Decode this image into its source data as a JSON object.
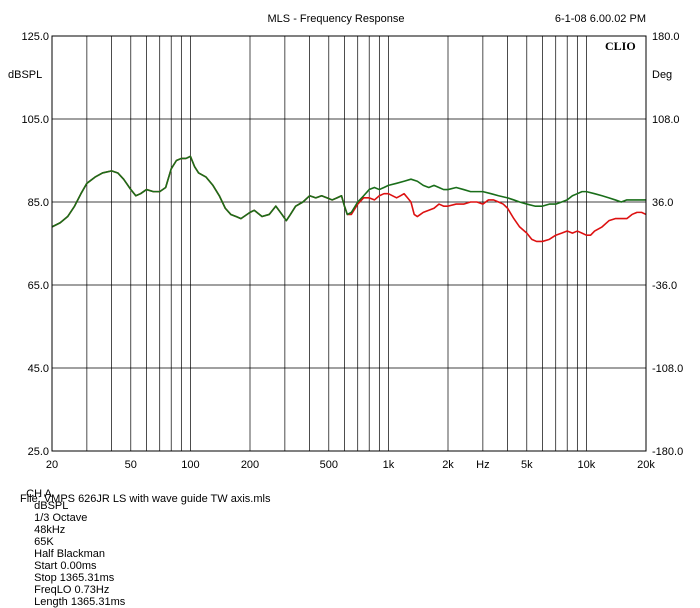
{
  "header": {
    "title": "MLS - Frequency Response",
    "timestamp": "6-1-08 6.00.02 PM",
    "logo": "CLIO"
  },
  "status_line": {
    "channel": "CH A",
    "unit": "dBSPL",
    "smoothing": "1/3 Octave",
    "sample_rate": "48kHz",
    "size": "65K",
    "window": "Half Blackman",
    "start": "Start 0.00ms",
    "stop": "Stop 1365.31ms",
    "freq_lo": "FreqLO 0.73Hz",
    "length": "Length 1365.31ms"
  },
  "file_line": "File: VMPS 626JR LS with wave guide TW axis.mls",
  "chart_data": {
    "type": "line",
    "title": "MLS - Frequency Response",
    "xlabel": "Hz",
    "ylabel": "dBSPL",
    "y2label": "Deg",
    "x_scale": "log",
    "xlim": [
      20,
      20000
    ],
    "ylim": [
      25,
      125
    ],
    "y2lim": [
      -180,
      180
    ],
    "grid": true,
    "x_ticks": [
      {
        "value": 20,
        "label": "20"
      },
      {
        "value": 50,
        "label": "50"
      },
      {
        "value": 100,
        "label": "100"
      },
      {
        "value": 200,
        "label": "200"
      },
      {
        "value": 500,
        "label": "500"
      },
      {
        "value": 1000,
        "label": "1k"
      },
      {
        "value": 2000,
        "label": "2k"
      },
      {
        "value": 5000,
        "label": "5k"
      },
      {
        "value": 10000,
        "label": "10k"
      },
      {
        "value": 20000,
        "label": "20k"
      }
    ],
    "x_unit_label": {
      "value": 3000,
      "label": "Hz"
    },
    "y_ticks": [
      {
        "value": 125,
        "label": "125.0"
      },
      {
        "value": 105,
        "label": "105.0"
      },
      {
        "value": 85,
        "label": "85.0"
      },
      {
        "value": 65,
        "label": "65.0"
      },
      {
        "value": 45,
        "label": "45.0"
      },
      {
        "value": 25,
        "label": "25.0"
      }
    ],
    "y2_ticks": [
      {
        "value": 180,
        "label": "180.0"
      },
      {
        "value": 108,
        "label": "108.0"
      },
      {
        "value": 36,
        "label": "36.0"
      },
      {
        "value": -36,
        "label": "-36.0"
      },
      {
        "value": -108,
        "label": "-108.0"
      },
      {
        "value": -180,
        "label": "-180.0"
      }
    ],
    "series": [
      {
        "color": "#dd1111",
        "points": [
          [
            20,
            79.0
          ],
          [
            22,
            80.0
          ],
          [
            24,
            81.5
          ],
          [
            26,
            84.0
          ],
          [
            28,
            87.0
          ],
          [
            30,
            89.5
          ],
          [
            33,
            91.0
          ],
          [
            36,
            92.0
          ],
          [
            40,
            92.5
          ],
          [
            43,
            92.0
          ],
          [
            46,
            90.5
          ],
          [
            50,
            88.0
          ],
          [
            53,
            86.5
          ],
          [
            56,
            87.0
          ],
          [
            60,
            88.0
          ],
          [
            65,
            87.5
          ],
          [
            70,
            87.5
          ],
          [
            75,
            88.5
          ],
          [
            80,
            93.0
          ],
          [
            85,
            95.0
          ],
          [
            90,
            95.5
          ],
          [
            95,
            95.5
          ],
          [
            100,
            96.0
          ],
          [
            105,
            93.5
          ],
          [
            110,
            92.0
          ],
          [
            120,
            91.0
          ],
          [
            130,
            89.0
          ],
          [
            140,
            86.5
          ],
          [
            150,
            83.5
          ],
          [
            160,
            82.0
          ],
          [
            170,
            81.5
          ],
          [
            180,
            81.0
          ],
          [
            200,
            82.5
          ],
          [
            210,
            83.0
          ],
          [
            230,
            81.5
          ],
          [
            250,
            82.0
          ],
          [
            270,
            84.0
          ],
          [
            290,
            82.0
          ],
          [
            305,
            80.5
          ],
          [
            320,
            82.0
          ],
          [
            340,
            84.0
          ],
          [
            370,
            85.0
          ],
          [
            400,
            86.5
          ],
          [
            430,
            86.0
          ],
          [
            460,
            86.5
          ],
          [
            490,
            86.0
          ],
          [
            520,
            85.5
          ],
          [
            550,
            86.0
          ],
          [
            580,
            86.5
          ],
          [
            600,
            84.0
          ],
          [
            620,
            82.0
          ],
          [
            650,
            82.0
          ],
          [
            700,
            84.5
          ],
          [
            750,
            86.0
          ],
          [
            800,
            86.0
          ],
          [
            850,
            85.5
          ],
          [
            900,
            86.5
          ],
          [
            950,
            87.0
          ],
          [
            1000,
            87.0
          ],
          [
            1050,
            86.5
          ],
          [
            1100,
            86.0
          ],
          [
            1150,
            86.5
          ],
          [
            1200,
            87.0
          ],
          [
            1250,
            86.0
          ],
          [
            1300,
            85.0
          ],
          [
            1350,
            82.0
          ],
          [
            1400,
            81.5
          ],
          [
            1450,
            82.0
          ],
          [
            1500,
            82.5
          ],
          [
            1600,
            83.0
          ],
          [
            1700,
            83.5
          ],
          [
            1800,
            84.5
          ],
          [
            1900,
            84.0
          ],
          [
            2000,
            84.0
          ],
          [
            2200,
            84.5
          ],
          [
            2400,
            84.5
          ],
          [
            2600,
            85.0
          ],
          [
            2800,
            85.0
          ],
          [
            3000,
            84.5
          ],
          [
            3200,
            85.5
          ],
          [
            3400,
            85.5
          ],
          [
            3600,
            85.0
          ],
          [
            3800,
            84.5
          ],
          [
            4000,
            83.5
          ],
          [
            4300,
            81.0
          ],
          [
            4600,
            79.0
          ],
          [
            5000,
            77.5
          ],
          [
            5300,
            76.0
          ],
          [
            5600,
            75.5
          ],
          [
            6000,
            75.5
          ],
          [
            6500,
            76.0
          ],
          [
            7000,
            77.0
          ],
          [
            7500,
            77.5
          ],
          [
            8000,
            78.0
          ],
          [
            8500,
            77.5
          ],
          [
            9000,
            78.0
          ],
          [
            9500,
            77.5
          ],
          [
            10000,
            77.0
          ],
          [
            10500,
            77.0
          ],
          [
            11000,
            78.0
          ],
          [
            12000,
            79.0
          ],
          [
            13000,
            80.5
          ],
          [
            14000,
            81.0
          ],
          [
            15000,
            81.0
          ],
          [
            16000,
            81.0
          ],
          [
            17000,
            82.0
          ],
          [
            18000,
            82.5
          ],
          [
            19000,
            82.5
          ],
          [
            20000,
            82.0
          ]
        ]
      },
      {
        "color": "#1a6e1a",
        "points": [
          [
            20,
            79.0
          ],
          [
            22,
            80.0
          ],
          [
            24,
            81.5
          ],
          [
            26,
            84.0
          ],
          [
            28,
            87.0
          ],
          [
            30,
            89.5
          ],
          [
            33,
            91.0
          ],
          [
            36,
            92.0
          ],
          [
            40,
            92.5
          ],
          [
            43,
            92.0
          ],
          [
            46,
            90.5
          ],
          [
            50,
            88.0
          ],
          [
            53,
            86.5
          ],
          [
            56,
            87.0
          ],
          [
            60,
            88.0
          ],
          [
            65,
            87.5
          ],
          [
            70,
            87.5
          ],
          [
            75,
            88.5
          ],
          [
            80,
            93.0
          ],
          [
            85,
            95.0
          ],
          [
            90,
            95.5
          ],
          [
            95,
            95.5
          ],
          [
            100,
            96.0
          ],
          [
            105,
            93.5
          ],
          [
            110,
            92.0
          ],
          [
            120,
            91.0
          ],
          [
            130,
            89.0
          ],
          [
            140,
            86.5
          ],
          [
            150,
            83.5
          ],
          [
            160,
            82.0
          ],
          [
            170,
            81.5
          ],
          [
            180,
            81.0
          ],
          [
            200,
            82.5
          ],
          [
            210,
            83.0
          ],
          [
            230,
            81.5
          ],
          [
            250,
            82.0
          ],
          [
            270,
            84.0
          ],
          [
            290,
            82.0
          ],
          [
            305,
            80.5
          ],
          [
            320,
            82.0
          ],
          [
            340,
            84.0
          ],
          [
            370,
            85.0
          ],
          [
            400,
            86.5
          ],
          [
            430,
            86.0
          ],
          [
            460,
            86.5
          ],
          [
            490,
            86.0
          ],
          [
            520,
            85.5
          ],
          [
            550,
            86.0
          ],
          [
            580,
            86.5
          ],
          [
            600,
            84.0
          ],
          [
            620,
            82.0
          ],
          [
            650,
            82.5
          ],
          [
            700,
            85.0
          ],
          [
            750,
            86.5
          ],
          [
            800,
            88.0
          ],
          [
            850,
            88.5
          ],
          [
            900,
            88.0
          ],
          [
            950,
            88.5
          ],
          [
            1000,
            89.0
          ],
          [
            1100,
            89.5
          ],
          [
            1200,
            90.0
          ],
          [
            1300,
            90.5
          ],
          [
            1400,
            90.0
          ],
          [
            1500,
            89.0
          ],
          [
            1600,
            88.5
          ],
          [
            1700,
            89.0
          ],
          [
            1800,
            88.5
          ],
          [
            1900,
            88.0
          ],
          [
            2000,
            88.0
          ],
          [
            2200,
            88.5
          ],
          [
            2400,
            88.0
          ],
          [
            2600,
            87.5
          ],
          [
            2800,
            87.5
          ],
          [
            3000,
            87.5
          ],
          [
            3300,
            87.0
          ],
          [
            3600,
            86.5
          ],
          [
            4000,
            86.0
          ],
          [
            4300,
            85.5
          ],
          [
            4600,
            85.0
          ],
          [
            5000,
            84.5
          ],
          [
            5500,
            84.0
          ],
          [
            6000,
            84.0
          ],
          [
            6500,
            84.5
          ],
          [
            7000,
            84.5
          ],
          [
            7500,
            85.0
          ],
          [
            8000,
            85.5
          ],
          [
            8500,
            86.5
          ],
          [
            9000,
            87.0
          ],
          [
            9500,
            87.5
          ],
          [
            10000,
            87.5
          ],
          [
            11000,
            87.0
          ],
          [
            12000,
            86.5
          ],
          [
            13000,
            86.0
          ],
          [
            14000,
            85.5
          ],
          [
            15000,
            85.0
          ],
          [
            16000,
            85.5
          ],
          [
            17000,
            85.5
          ],
          [
            18000,
            85.5
          ],
          [
            19000,
            85.5
          ],
          [
            20000,
            85.5
          ]
        ]
      }
    ]
  }
}
